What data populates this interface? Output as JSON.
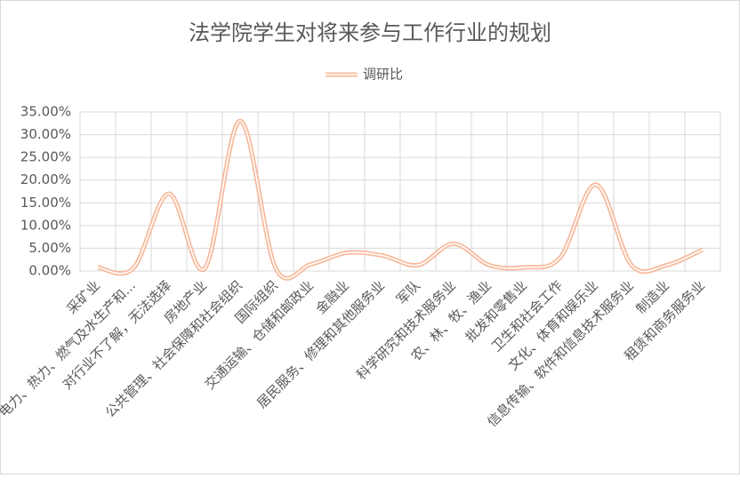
{
  "chart_data": {
    "type": "line",
    "title": "法学院学生对将来参与工作行业的规划",
    "categories": [
      "采矿业",
      "电力、热力、燃气及水生产和...",
      "对行业不了解，无法选择",
      "房地产业",
      "公共管理、社会保障和社会组织",
      "国际组织",
      "交通运输、仓储和邮政业",
      "金融业",
      "居民服务、修理和其他服务业",
      "军队",
      "科学研究和技术服务业",
      "农、林、牧、渔业",
      "批发和零售业",
      "卫生和社会工作",
      "文化、体育和娱乐业",
      "信息传输、软件和信息技术服务业",
      "制造业",
      "租赁和商务服务业"
    ],
    "series": [
      {
        "name": "调研比",
        "color": "#f8b899",
        "values": [
          0.8,
          0.6,
          17.0,
          0.5,
          33.0,
          0.6,
          1.5,
          4.0,
          3.4,
          1.3,
          6.0,
          1.3,
          0.8,
          3.0,
          19.0,
          1.3,
          1.3,
          4.7
        ]
      }
    ],
    "ylim": [
      0,
      35
    ],
    "yticks": [
      {
        "value": 0,
        "label": "0.00%"
      },
      {
        "value": 5,
        "label": "5.00%"
      },
      {
        "value": 10,
        "label": "10.00%"
      },
      {
        "value": 15,
        "label": "15.00%"
      },
      {
        "value": 20,
        "label": "20.00%"
      },
      {
        "value": 25,
        "label": "25.00%"
      },
      {
        "value": 30,
        "label": "30.00%"
      },
      {
        "value": 35,
        "label": "35.00%"
      }
    ],
    "grid": true,
    "smooth": true,
    "legend": "top"
  }
}
